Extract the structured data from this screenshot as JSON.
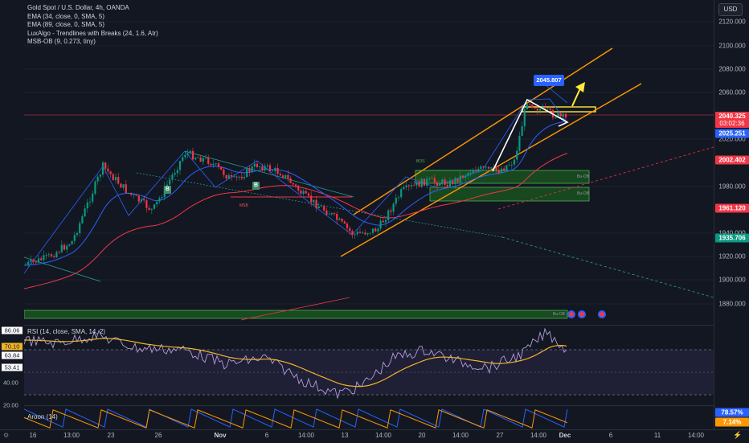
{
  "legend": {
    "symbol": "Gold Spot / U.S. Dollar, 4h, OANDA",
    "ind1": "EMA (34, close, 0, SMA, 5)",
    "ind2": "EMA (89, close, 0, SMA, 5)",
    "ind3": "LuxAlgo - Trendlines with Breaks (24, 1.6, Atr)",
    "ind4": "MSB-OB (9, 0.273, tiny)"
  },
  "currency": "USD",
  "price_axis": {
    "labels": [
      "2120.000",
      "2100.000",
      "2080.000",
      "2060.000",
      "2020.000",
      "1980.000",
      "1940.000",
      "1920.000",
      "1900.000",
      "1880.000"
    ],
    "tags": [
      {
        "text": "2040.325",
        "sub": "03:02:36",
        "color": "#f23645"
      },
      {
        "text": "2025.251",
        "sub": "",
        "color": "#2962ff"
      },
      {
        "text": "2002.402",
        "sub": "",
        "color": "#f23645"
      },
      {
        "text": "1961.120",
        "sub": "",
        "color": "#f23645"
      },
      {
        "text": "1935.706",
        "sub": "",
        "color": "#089981"
      }
    ]
  },
  "callout": "2045.807",
  "annotations": {
    "msb_label": "MSB",
    "bos_label": "BOS",
    "break_label": "B",
    "ob1": "Bu-OB",
    "ob2": "Bu-OB",
    "ob3": "Bu-OB"
  },
  "rsi": {
    "legend": "RSI (14, close, SMA, 14, 2)",
    "tags": [
      {
        "text": "86.06",
        "color": "#ffffff",
        "fg": "#131722"
      },
      {
        "text": "70.10",
        "color": "#f0b429",
        "fg": "#131722"
      },
      {
        "text": "63.84",
        "color": "#ffffff",
        "fg": "#131722"
      },
      {
        "text": "53.41",
        "color": "#ffffff",
        "fg": "#131722"
      }
    ],
    "axis": [
      "40.00",
      "20.00"
    ]
  },
  "aroon": {
    "legend": "Aroon (14)",
    "tags": [
      {
        "text": "78.57%",
        "color": "#2962ff"
      },
      {
        "text": "7.14%",
        "color": "#ff9800"
      }
    ]
  },
  "time_axis": [
    "16",
    "13:00",
    "23",
    "26",
    "Nov",
    "6",
    "14:00",
    "13",
    "14:00",
    "20",
    "14:00",
    "27",
    "14:00",
    "Dec",
    "6",
    "11",
    "14:00"
  ],
  "colors": {
    "background": "#131722",
    "channel": "#ff9800",
    "ema34": "#2962ff",
    "ema89": "#f23645",
    "up_candle": "#089981",
    "down_candle": "#f23645",
    "ob_fill": "#1b5e20",
    "highlight": "#ffeb3b"
  },
  "icons": [
    "settings-icon",
    "lightning-icon",
    "flag-icon"
  ]
}
